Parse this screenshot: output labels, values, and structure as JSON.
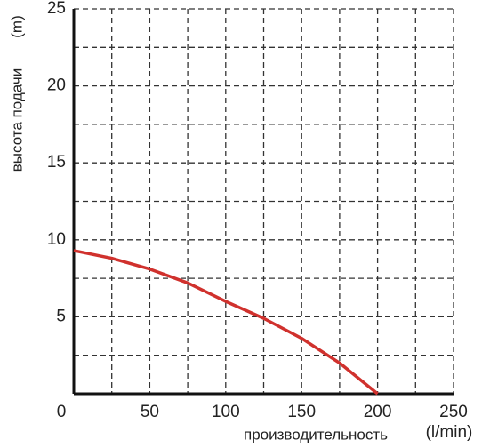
{
  "chart_data": {
    "type": "line",
    "xlabel": "производительность",
    "xunit": "(l/min)",
    "ylabel": "высота подачи",
    "yunit": "(m)",
    "x": [
      0,
      25,
      50,
      75,
      100,
      125,
      150,
      175,
      200
    ],
    "series": [
      {
        "color": "#d0312d",
        "values": [
          9.3,
          8.8,
          8.1,
          7.2,
          6.0,
          4.9,
          3.6,
          2.0,
          0
        ]
      }
    ],
    "xlim": [
      0,
      250
    ],
    "ylim": [
      0,
      25
    ],
    "xticks": [
      0,
      50,
      100,
      150,
      200,
      250
    ],
    "yticks": [
      5,
      10,
      15,
      20,
      25
    ],
    "xgrid": [
      25,
      50,
      75,
      100,
      125,
      150,
      175,
      200,
      225,
      250
    ],
    "ygrid": [
      2.5,
      5,
      7.5,
      10,
      12.5,
      15,
      17.5,
      20,
      22.5,
      25
    ],
    "grid": true
  }
}
